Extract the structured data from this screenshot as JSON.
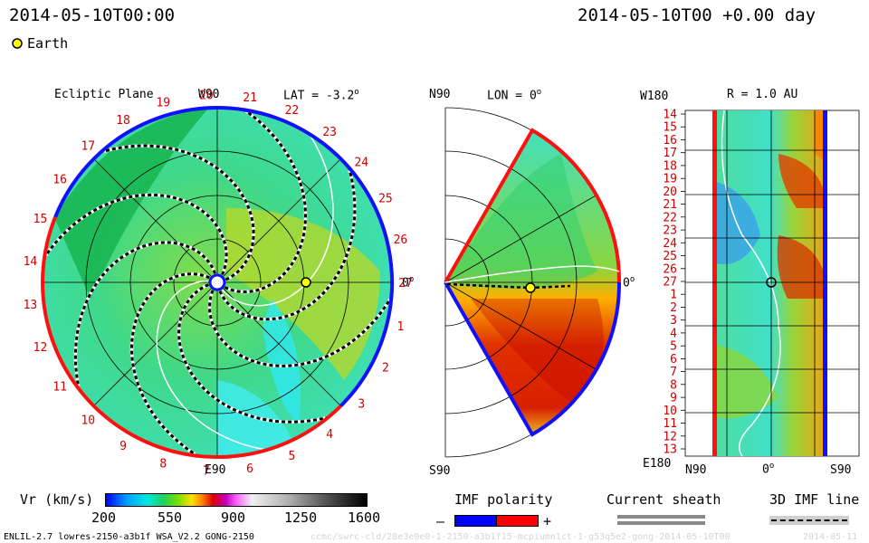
{
  "header": {
    "datetime_left": "2014-05-10T00:00",
    "datetime_right": "2014-05-10T00 +0.00 day",
    "earth_label": "Earth"
  },
  "footer": {
    "model_info": "ENLIL-2.7 lowres-2150-a3b1f WSA_V2.2 GONG-2150",
    "run_id_faint": "ccmc/swrc-cld/28e3e0e0-1-2150-a3b1f15-mcpiumn1ct-1-g53q5e2-gong-2014-05-10T00",
    "date_faint": "2014-05-11"
  },
  "chart_data": [
    {
      "type": "polar-contour",
      "title": "Ecliptic Plane",
      "lat_label": "LAT = -3.2",
      "degree_mark": "o",
      "top_label": "W90",
      "bottom_label": "E90",
      "right_label": "0",
      "carrington_labels": [
        "1",
        "2",
        "3",
        "4",
        "5",
        "6",
        "7",
        "8",
        "9",
        "10",
        "11",
        "12",
        "13",
        "14",
        "15",
        "16",
        "17",
        "18",
        "19",
        "20",
        "21",
        "22",
        "23",
        "24",
        "25",
        "26",
        "27"
      ],
      "earth_position": {
        "longitude_deg": 0,
        "radius_au": 1.0
      }
    },
    {
      "type": "meridional-contour",
      "title": "LON = 0",
      "degree_mark": "o",
      "top_label": "N90",
      "bottom_label": "S90",
      "right_label": "0",
      "earth_position": {
        "latitude_deg": 0,
        "radius_au": 1.0
      }
    },
    {
      "type": "heatmap",
      "title": "R = 1.0 AU",
      "top_label": "W180",
      "bottom_label": "E180",
      "x_labels": {
        "left": "N90",
        "center": "0",
        "right": "S90"
      },
      "degree_mark": "o",
      "y_tick_labels": [
        "14",
        "15",
        "16",
        "17",
        "18",
        "19",
        "20",
        "21",
        "22",
        "23",
        "24",
        "25",
        "26",
        "27",
        "1",
        "2",
        "3",
        "4",
        "5",
        "6",
        "7",
        "8",
        "9",
        "10",
        "11",
        "12",
        "13"
      ]
    }
  ],
  "colorbar": {
    "label": "Vr (km/s)",
    "ticks": [
      "200",
      "550",
      "900",
      "1250",
      "1600"
    ],
    "range": [
      200,
      1600
    ]
  },
  "legends": {
    "imf_polarity": {
      "title": "IMF polarity",
      "minus": "–",
      "plus": "+",
      "negative_color": "#0000ff",
      "positive_color": "#ff0000"
    },
    "current_sheath": {
      "title": "Current sheath"
    },
    "imf_line": {
      "title": "3D IMF line"
    }
  },
  "colors": {
    "polarity_negative": "#1010ff",
    "polarity_positive": "#ff1010",
    "earth_fill": "#ffff00"
  }
}
